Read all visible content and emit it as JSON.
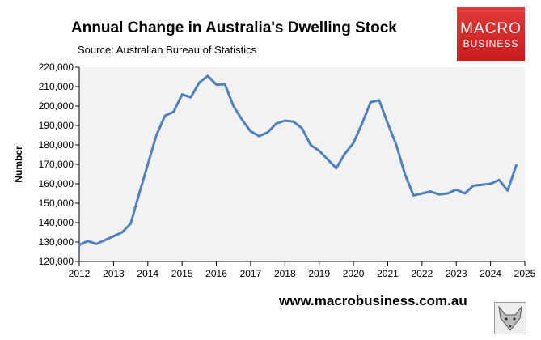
{
  "title": "Annual Change in Australia's Dwelling Stock",
  "subtitle": "Source: Australian Bureau of Statistics",
  "logo": {
    "line1": "MACRO",
    "line2": "BUSINESS"
  },
  "footer": {
    "website": "www.macrobusiness.com.au"
  },
  "colors": {
    "line": "#4f81bd",
    "plot_bg": "#f2f2f2",
    "logo_red": "#d42a2a"
  },
  "chart_data": {
    "type": "line",
    "title": "Annual Change in Australia's Dwelling Stock",
    "xlabel": "",
    "ylabel": "Number",
    "xlim": [
      2012,
      2025
    ],
    "ylim": [
      120000,
      220000
    ],
    "yticks": [
      120000,
      130000,
      140000,
      150000,
      160000,
      170000,
      180000,
      190000,
      200000,
      210000,
      220000
    ],
    "ytick_labels": [
      "120,000",
      "130,000",
      "140,000",
      "150,000",
      "160,000",
      "170,000",
      "180,000",
      "190,000",
      "200,000",
      "210,000",
      "220,000"
    ],
    "xticks": [
      2012,
      2013,
      2014,
      2015,
      2016,
      2017,
      2018,
      2019,
      2020,
      2021,
      2022,
      2023,
      2024,
      2025
    ],
    "xtick_labels": [
      "2012",
      "2013",
      "2014",
      "2015",
      "2016",
      "2017",
      "2018",
      "2019",
      "2020",
      "2021",
      "2022",
      "2023",
      "2024",
      "2025"
    ],
    "grid": false,
    "series": [
      {
        "x": [
          2012.0,
          2012.25,
          2012.5,
          2012.75,
          2013.0,
          2013.25,
          2013.5,
          2013.75,
          2014.0,
          2014.25,
          2014.5,
          2014.75,
          2015.0,
          2015.25,
          2015.5,
          2015.75,
          2016.0,
          2016.25,
          2016.5,
          2016.75,
          2017.0,
          2017.25,
          2017.5,
          2017.75,
          2018.0,
          2018.25,
          2018.5,
          2018.75,
          2019.0,
          2019.25,
          2019.5,
          2019.75,
          2020.0,
          2020.25,
          2020.5,
          2020.75,
          2021.0,
          2021.25,
          2021.5,
          2021.75,
          2022.0,
          2022.25,
          2022.5,
          2022.75,
          2023.0,
          2023.25,
          2023.5,
          2023.75,
          2024.0,
          2024.25,
          2024.5,
          2024.75
        ],
        "y": [
          128500,
          130500,
          129000,
          131000,
          133000,
          135000,
          139500,
          155000,
          170000,
          185000,
          195000,
          197000,
          206000,
          204500,
          212000,
          215500,
          211000,
          211200,
          200000,
          193000,
          187000,
          184500,
          186500,
          191000,
          192500,
          192000,
          188500,
          180000,
          177000,
          172500,
          168000,
          175500,
          181000,
          191000,
          202000,
          203000,
          191000,
          180000,
          165000,
          154000,
          155000,
          156000,
          154500,
          155000,
          157000,
          155000,
          159000,
          159500,
          160000,
          162000,
          156500,
          169500
        ]
      }
    ]
  }
}
